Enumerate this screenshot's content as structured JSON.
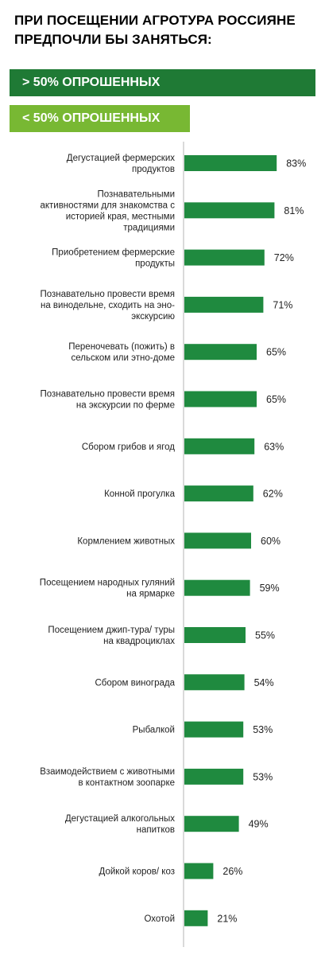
{
  "title": "ПРИ ПОСЕЩЕНИИ АГРОТУРА РОССИЯНЕ ПРЕДПОЧЛИ БЫ ЗАНЯТЬСЯ:",
  "legend": {
    "above": {
      "label": "> 50% ОПРОШЕННЫХ",
      "color": "#1f7a35"
    },
    "below": {
      "label": "< 50% ОПРОШЕННЫХ",
      "color": "#78b833"
    }
  },
  "colors": {
    "bar": "#1f8a3f",
    "axis": "#b5b5b5",
    "text": "#222222"
  },
  "chart_data": {
    "type": "bar",
    "orientation": "horizontal",
    "title": "",
    "xlabel": "",
    "ylabel": "",
    "xlim": [
      0,
      100
    ],
    "grid": false,
    "unit": "%",
    "categories": [
      [
        "Дегустацией фермерских",
        "продуктов"
      ],
      [
        "Познавательными",
        "активностями для знакомства с",
        "историей края, местными",
        "традициями"
      ],
      [
        "Приобретением  фермерские",
        "продукты"
      ],
      [
        "Познавательно провести время",
        "на винодельне, сходить на эно-",
        "экскурсию"
      ],
      [
        "Переночевать (пожить) в",
        "сельском или этно-доме"
      ],
      [
        "Познавательно провести время",
        "на экскурсии по ферме"
      ],
      [
        "Сбором грибов и ягод"
      ],
      [
        "Конной прогулка"
      ],
      [
        "Кормлением животных"
      ],
      [
        "Посещением народных гуляний",
        "на ярмарке"
      ],
      [
        "Посещением джип-тура/ туры",
        "на квадроциклах"
      ],
      [
        "Сбором винограда"
      ],
      [
        "Рыбалкой"
      ],
      [
        "Взаимодействием с животными",
        "в контактном зоопарке"
      ],
      [
        "Дегустацией алкогольных",
        "напитков"
      ],
      [
        "Дойкой коров/ коз"
      ],
      [
        "Охотой"
      ]
    ],
    "values": [
      83,
      81,
      72,
      71,
      65,
      65,
      63,
      62,
      60,
      59,
      55,
      54,
      53,
      53,
      49,
      26,
      21
    ],
    "value_labels": [
      "83%",
      "81%",
      "72%",
      "71%",
      "65%",
      "65%",
      "63%",
      "62%",
      "60%",
      "59%",
      "55%",
      "54%",
      "53%",
      "53%",
      "49%",
      "26%",
      "21%"
    ]
  }
}
